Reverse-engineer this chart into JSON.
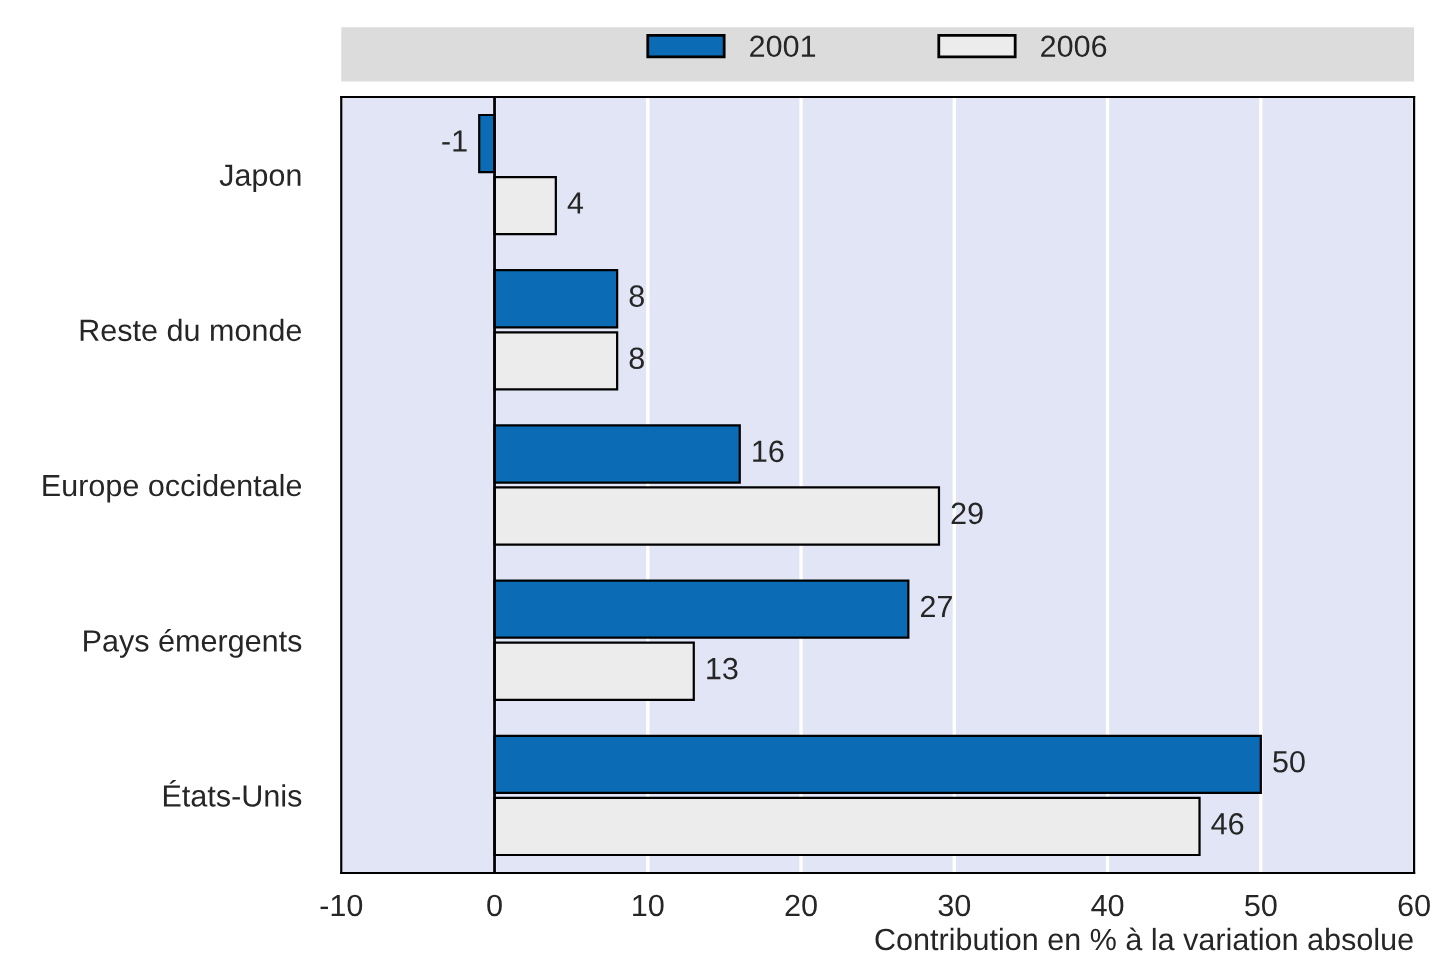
{
  "chart_data": {
    "type": "bar",
    "orientation": "horizontal",
    "categories": [
      "Japon",
      "Reste du monde",
      "Europe occidentale",
      "Pays émergents",
      "États-Unis"
    ],
    "series": [
      {
        "name": "2001",
        "color": "#0b6cb5",
        "values": [
          -1,
          8,
          16,
          27,
          50
        ]
      },
      {
        "name": "2006",
        "color": "#ececec",
        "values": [
          4,
          8,
          29,
          13,
          46
        ]
      }
    ],
    "xlabel": "Contribution en % à la variation absolue",
    "xlim": [
      -10,
      60
    ],
    "xticks": [
      -10,
      0,
      10,
      20,
      30,
      40,
      50,
      60
    ],
    "ref_lines": [
      {
        "axis": "x",
        "value": 0,
        "color": "#000000"
      }
    ],
    "grid": "x",
    "legend": "top",
    "data_labels": true
  }
}
